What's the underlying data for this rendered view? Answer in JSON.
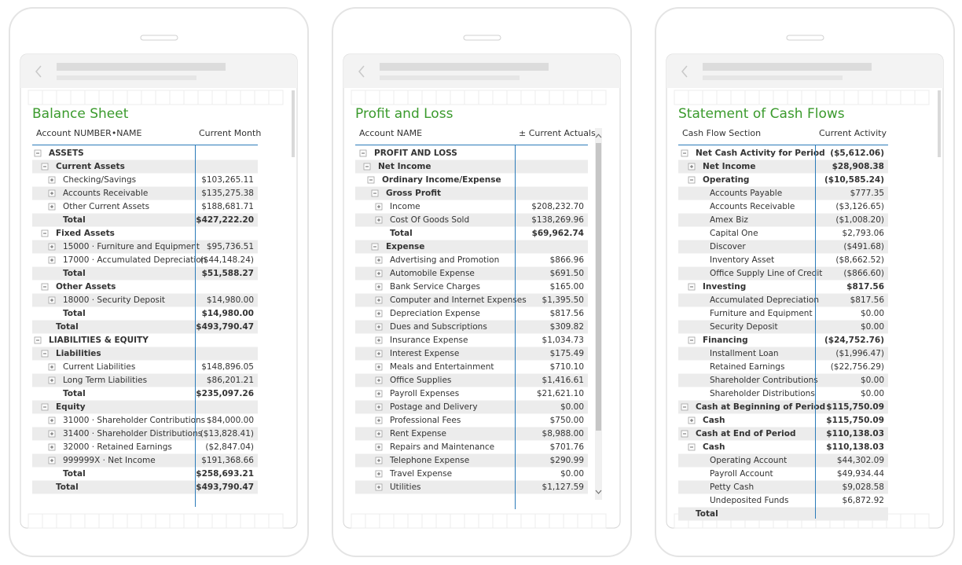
{
  "panels": [
    {
      "title": "Balance Sheet",
      "columns": [
        "Account NUMBER•NAME",
        "Current Month"
      ],
      "rows": [
        {
          "label": "ASSETS",
          "level": 0,
          "icon": "minus",
          "bold": true
        },
        {
          "label": "Current Assets",
          "level": 1,
          "icon": "minus",
          "bold": true
        },
        {
          "label": "Checking/Savings",
          "level": 2,
          "icon": "plus",
          "link": true,
          "value": "$103,265.11"
        },
        {
          "label": "Accounts Receivable",
          "level": 2,
          "icon": "plus",
          "value": "$135,275.38"
        },
        {
          "label": "Other Current Assets",
          "level": 2,
          "icon": "plus",
          "link": true,
          "value": "$188,681.71"
        },
        {
          "label": "Total",
          "level": 2,
          "bold": true,
          "value": "$427,222.20"
        },
        {
          "label": "Fixed Assets",
          "level": 1,
          "icon": "minus",
          "bold": true
        },
        {
          "label": "15000 · Furniture and Equipment",
          "level": 2,
          "icon": "plus",
          "value": "$95,736.51"
        },
        {
          "label": "17000 · Accumulated Depreciation",
          "level": 2,
          "icon": "plus",
          "link": true,
          "value": "($44,148.24)"
        },
        {
          "label": "Total",
          "level": 2,
          "bold": true,
          "value": "$51,588.27"
        },
        {
          "label": "Other Assets",
          "level": 1,
          "icon": "minus",
          "bold": true
        },
        {
          "label": "18000 · Security Deposit",
          "level": 2,
          "icon": "plus",
          "value": "$14,980.00"
        },
        {
          "label": "Total",
          "level": 2,
          "bold": true,
          "value": "$14,980.00"
        },
        {
          "label": "Total",
          "level": 1,
          "bold": true,
          "value": "$493,790.47"
        },
        {
          "label": "LIABILITIES & EQUITY",
          "level": 0,
          "icon": "minus",
          "bold": true
        },
        {
          "label": "Liabilities",
          "level": 1,
          "icon": "minus",
          "bold": true
        },
        {
          "label": "Current Liabilities",
          "level": 2,
          "icon": "plus",
          "link": true,
          "value": "$148,896.05"
        },
        {
          "label": "Long Term Liabilities",
          "level": 2,
          "icon": "plus",
          "value": "$86,201.21"
        },
        {
          "label": "Total",
          "level": 2,
          "bold": true,
          "value": "$235,097.26"
        },
        {
          "label": "Equity",
          "level": 1,
          "icon": "minus",
          "bold": true
        },
        {
          "label": "31000 · Shareholder Contributions",
          "level": 2,
          "icon": "plus",
          "link": true,
          "value": "$84,000.00"
        },
        {
          "label": "31400 · Shareholder Distributions",
          "level": 2,
          "icon": "plus",
          "value": "($13,828.41)"
        },
        {
          "label": "32000 · Retained Earnings",
          "level": 2,
          "icon": "plus",
          "link": true,
          "value": "($2,847.04)"
        },
        {
          "label": "999999X · Net Income",
          "level": 2,
          "icon": "plus",
          "value": "$191,368.66"
        },
        {
          "label": "Total",
          "level": 2,
          "bold": true,
          "value": "$258,693.21"
        },
        {
          "label": "Total",
          "level": 1,
          "bold": true,
          "value": "$493,790.47"
        }
      ]
    },
    {
      "title": "Profit and Loss",
      "columns": [
        "Account NAME",
        "± Current Actuals"
      ],
      "rows": [
        {
          "label": "PROFIT AND LOSS",
          "level": 0,
          "icon": "minus",
          "bold": true
        },
        {
          "label": "Net Income",
          "level": 1,
          "icon": "minus",
          "bold": true
        },
        {
          "label": "Ordinary Income/Expense",
          "level": 2,
          "icon": "minus",
          "bold": true
        },
        {
          "label": "Gross Profit",
          "level": 3,
          "icon": "minus",
          "bold": true
        },
        {
          "label": "Income",
          "level": 4,
          "icon": "plus",
          "link": true,
          "value": "$208,232.70"
        },
        {
          "label": "Cost Of Goods Sold",
          "level": 4,
          "icon": "plus",
          "value": "$138,269.96"
        },
        {
          "label": "Total",
          "level": 4,
          "bold": true,
          "value": "$69,962.74"
        },
        {
          "label": "Expense",
          "level": 3,
          "icon": "minus",
          "bold": true
        },
        {
          "label": "Advertising and Promotion",
          "level": 4,
          "icon": "plus",
          "link": true,
          "value": "$866.96"
        },
        {
          "label": "Automobile Expense",
          "level": 4,
          "icon": "plus",
          "value": "$691.50"
        },
        {
          "label": "Bank Service Charges",
          "level": 4,
          "icon": "plus",
          "link": true,
          "value": "$165.00"
        },
        {
          "label": "Computer and Internet Expenses",
          "level": 4,
          "icon": "plus",
          "value": "$1,395.50"
        },
        {
          "label": "Depreciation Expense",
          "level": 4,
          "icon": "plus",
          "link": true,
          "value": "$817.56"
        },
        {
          "label": "Dues and Subscriptions",
          "level": 4,
          "icon": "plus",
          "value": "$309.82"
        },
        {
          "label": "Insurance Expense",
          "level": 4,
          "icon": "plus",
          "link": true,
          "value": "$1,034.73"
        },
        {
          "label": "Interest Expense",
          "level": 4,
          "icon": "plus",
          "value": "$175.49"
        },
        {
          "label": "Meals and Entertainment",
          "level": 4,
          "icon": "plus",
          "link": true,
          "value": "$710.10"
        },
        {
          "label": "Office Supplies",
          "level": 4,
          "icon": "plus",
          "value": "$1,416.61"
        },
        {
          "label": "Payroll Expenses",
          "level": 4,
          "icon": "plus",
          "link": true,
          "value": "$21,621.10"
        },
        {
          "label": "Postage and Delivery",
          "level": 4,
          "icon": "plus",
          "value": "$0.00"
        },
        {
          "label": "Professional Fees",
          "level": 4,
          "icon": "plus",
          "link": true,
          "value": "$750.00"
        },
        {
          "label": "Rent Expense",
          "level": 4,
          "icon": "plus",
          "value": "$8,988.00"
        },
        {
          "label": "Repairs and Maintenance",
          "level": 4,
          "icon": "plus",
          "link": true,
          "value": "$701.76"
        },
        {
          "label": "Telephone Expense",
          "level": 4,
          "icon": "plus",
          "value": "$290.99"
        },
        {
          "label": "Travel Expense",
          "level": 4,
          "icon": "plus",
          "link": true,
          "value": "$0.00"
        },
        {
          "label": "Utilities",
          "level": 4,
          "icon": "plus",
          "value": "$1,127.59"
        }
      ]
    },
    {
      "title": "Statement of Cash Flows",
      "columns": [
        "Cash Flow Section",
        "Current Activity"
      ],
      "rows": [
        {
          "label": "Net Cash Activity for Period",
          "level": 0,
          "icon": "minus",
          "bold": true,
          "value": "($5,612.06)"
        },
        {
          "label": "Net Income",
          "level": 1,
          "icon": "plus",
          "bold": true,
          "value": "$28,908.38"
        },
        {
          "label": "Operating",
          "level": 1,
          "icon": "minus",
          "bold": true,
          "value": "($10,585.24)"
        },
        {
          "label": "Accounts Payable",
          "level": 2,
          "value": "$777.35"
        },
        {
          "label": "Accounts Receivable",
          "level": 2,
          "value": "($3,126.65)"
        },
        {
          "label": "Amex Biz",
          "level": 2,
          "value": "($1,008.20)"
        },
        {
          "label": "Capital One",
          "level": 2,
          "value": "$2,793.06"
        },
        {
          "label": "Discover",
          "level": 2,
          "value": "($491.68)"
        },
        {
          "label": "Inventory Asset",
          "level": 2,
          "value": "($8,662.52)"
        },
        {
          "label": "Office Supply Line of Credit",
          "level": 2,
          "value": "($866.60)"
        },
        {
          "label": "Investing",
          "level": 1,
          "icon": "minus",
          "bold": true,
          "value": "$817.56"
        },
        {
          "label": "Accumulated Depreciation",
          "level": 2,
          "value": "$817.56"
        },
        {
          "label": "Furniture and Equipment",
          "level": 2,
          "value": "$0.00"
        },
        {
          "label": "Security Deposit",
          "level": 2,
          "value": "$0.00"
        },
        {
          "label": "Financing",
          "level": 1,
          "icon": "minus",
          "bold": true,
          "value": "($24,752.76)"
        },
        {
          "label": "Installment Loan",
          "level": 2,
          "value": "($1,996.47)"
        },
        {
          "label": "Retained Earnings",
          "level": 2,
          "value": "($22,756.29)"
        },
        {
          "label": "Shareholder Contributions",
          "level": 2,
          "value": "$0.00"
        },
        {
          "label": "Shareholder Distributions",
          "level": 2,
          "value": "$0.00"
        },
        {
          "label": "Cash at Beginning of Period",
          "level": 0,
          "icon": "minus",
          "bold": true,
          "value": "$115,750.09"
        },
        {
          "label": "Cash",
          "level": 1,
          "icon": "plus",
          "bold": true,
          "value": "$115,750.09"
        },
        {
          "label": "Cash at End of Period",
          "level": 0,
          "icon": "minus",
          "bold": true,
          "value": "$110,138.03"
        },
        {
          "label": "Cash",
          "level": 1,
          "icon": "minus",
          "bold": true,
          "value": "$110,138.03"
        },
        {
          "label": "Operating Account",
          "level": 2,
          "value": "$44,302.09"
        },
        {
          "label": "Payroll Account",
          "level": 2,
          "value": "$49,934.44"
        },
        {
          "label": "Petty Cash",
          "level": 2,
          "value": "$9,028.58"
        },
        {
          "label": "Undeposited Funds",
          "level": 2,
          "value": "$6,872.92"
        },
        {
          "label": "Total",
          "level": 0,
          "bold": true
        }
      ]
    }
  ]
}
